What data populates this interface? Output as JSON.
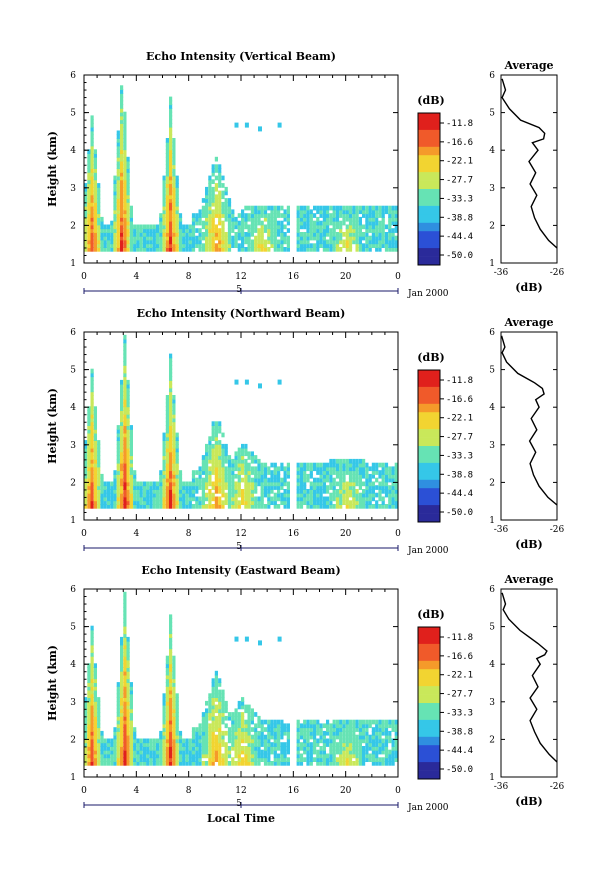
{
  "chart_data": [
    {
      "type": "heatmap",
      "title": "Echo Intensity (Vertical Beam)",
      "xlabel": "",
      "ylabel": "Height (km)",
      "xlim": [
        0,
        24
      ],
      "ylim": [
        1,
        6
      ],
      "x_ticks": [
        "0",
        "4",
        "8",
        "12",
        "16",
        "20",
        "0"
      ],
      "y_ticks": [
        "1",
        "2",
        "3",
        "4",
        "5",
        "6"
      ],
      "date_axis": {
        "ticks": [
          "5"
        ],
        "end_label": "Jan 2000"
      },
      "colorbar": {
        "unit": "(dB)",
        "ticks": [
          "-11.8",
          "-16.6",
          "-22.1",
          "-27.7",
          "-33.3",
          "-38.8",
          "-44.4",
          "-50.0"
        ]
      },
      "features": [
        {
          "hour": 0.5,
          "top_km": 4.8,
          "peak_db": -14
        },
        {
          "hour": 2.8,
          "top_km": 5.9,
          "peak_db": -12
        },
        {
          "hour": 6.5,
          "top_km": 5.3,
          "peak_db": -13
        },
        {
          "hour": 10.0,
          "top_km": 3.8,
          "peak_db": -20
        },
        {
          "hour": 13.5,
          "top_km": 2.5,
          "peak_db": -24
        },
        {
          "hour": 20.0,
          "top_km": 2.5,
          "peak_db": -26
        }
      ]
    },
    {
      "type": "line",
      "title": "Average",
      "xlabel": "(dB)",
      "ylabel": "",
      "xlim": [
        -36,
        -26
      ],
      "ylim": [
        1,
        6
      ],
      "x_ticks": [
        "-36",
        "-26"
      ],
      "y_ticks": [
        "1",
        "2",
        "3",
        "4",
        "5",
        "6"
      ],
      "series": [
        {
          "x": [
            -25.8,
            -27.5,
            -29,
            -30,
            -30.6,
            -29.6,
            -30.8,
            -29.8,
            -31,
            -29.4,
            -30.4,
            -28.4,
            -28.2,
            -29.2,
            -32.5,
            -34.5,
            -35.8,
            -35.2,
            -35.8
          ],
          "y": [
            1.4,
            1.6,
            1.9,
            2.2,
            2.5,
            2.8,
            3.1,
            3.4,
            3.7,
            4.0,
            4.2,
            4.3,
            4.45,
            4.6,
            4.8,
            5.1,
            5.4,
            5.6,
            5.9
          ]
        }
      ]
    },
    {
      "type": "heatmap",
      "title": "Echo Intensity (Northward Beam)",
      "xlabel": "",
      "ylabel": "Height (km)",
      "xlim": [
        0,
        24
      ],
      "ylim": [
        1,
        6
      ],
      "x_ticks": [
        "0",
        "4",
        "8",
        "12",
        "16",
        "20",
        "0"
      ],
      "y_ticks": [
        "1",
        "2",
        "3",
        "4",
        "5",
        "6"
      ],
      "date_axis": {
        "ticks": [
          "5"
        ],
        "end_label": "Jan 2000"
      },
      "colorbar": {
        "unit": "(dB)",
        "ticks": [
          "-11.8",
          "-16.6",
          "-22.1",
          "-27.7",
          "-33.3",
          "-38.8",
          "-44.4",
          "-50.0"
        ]
      },
      "features": [
        {
          "hour": 0.5,
          "top_km": 4.9,
          "peak_db": -14
        },
        {
          "hour": 3.0,
          "top_km": 5.8,
          "peak_db": -12
        },
        {
          "hour": 6.5,
          "top_km": 5.3,
          "peak_db": -13
        },
        {
          "hour": 10.0,
          "top_km": 3.8,
          "peak_db": -20
        },
        {
          "hour": 12.0,
          "top_km": 3.0,
          "peak_db": -23
        },
        {
          "hour": 20.0,
          "top_km": 2.6,
          "peak_db": -26
        }
      ]
    },
    {
      "type": "line",
      "title": "Average",
      "xlabel": "(dB)",
      "ylabel": "",
      "xlim": [
        -36,
        -26
      ],
      "ylim": [
        1,
        6
      ],
      "x_ticks": [
        "-36",
        "-26"
      ],
      "y_ticks": [
        "1",
        "2",
        "3",
        "4",
        "5",
        "6"
      ],
      "series": [
        {
          "x": [
            -25.8,
            -27.6,
            -29.2,
            -30.2,
            -30.8,
            -29.8,
            -30.9,
            -29.6,
            -30.6,
            -29.2,
            -29.8,
            -28.3,
            -28.6,
            -30,
            -33,
            -35,
            -35.8,
            -35.3,
            -35.9
          ],
          "y": [
            1.4,
            1.6,
            1.9,
            2.2,
            2.5,
            2.8,
            3.1,
            3.4,
            3.7,
            4.0,
            4.2,
            4.35,
            4.5,
            4.65,
            4.9,
            5.2,
            5.45,
            5.6,
            5.9
          ]
        }
      ]
    },
    {
      "type": "heatmap",
      "title": "Echo Intensity (Eastward Beam)",
      "xlabel": "Local Time",
      "ylabel": "Height (km)",
      "xlim": [
        0,
        24
      ],
      "ylim": [
        1,
        6
      ],
      "x_ticks": [
        "0",
        "4",
        "8",
        "12",
        "16",
        "20",
        "0"
      ],
      "y_ticks": [
        "1",
        "2",
        "3",
        "4",
        "5",
        "6"
      ],
      "date_axis": {
        "ticks": [
          "5"
        ],
        "end_label": "Jan 2000"
      },
      "colorbar": {
        "unit": "(dB)",
        "ticks": [
          "-11.8",
          "-16.6",
          "-22.1",
          "-27.7",
          "-33.3",
          "-38.8",
          "-44.4",
          "-50.0"
        ]
      },
      "features": [
        {
          "hour": 0.5,
          "top_km": 4.9,
          "peak_db": -14
        },
        {
          "hour": 3.0,
          "top_km": 5.8,
          "peak_db": -12
        },
        {
          "hour": 6.5,
          "top_km": 5.2,
          "peak_db": -13
        },
        {
          "hour": 10.0,
          "top_km": 3.8,
          "peak_db": -20
        },
        {
          "hour": 12.0,
          "top_km": 3.1,
          "peak_db": -23
        },
        {
          "hour": 20.0,
          "top_km": 2.5,
          "peak_db": -26
        }
      ]
    },
    {
      "type": "line",
      "title": "Average",
      "xlabel": "(dB)",
      "ylabel": "",
      "xlim": [
        -36,
        -26
      ],
      "ylim": [
        1,
        6
      ],
      "x_ticks": [
        "-36",
        "-26"
      ],
      "y_ticks": [
        "1",
        "2",
        "3",
        "4",
        "5",
        "6"
      ],
      "series": [
        {
          "x": [
            -25.6,
            -27.4,
            -29,
            -30,
            -30.8,
            -29.6,
            -30.8,
            -29.4,
            -30.4,
            -29,
            -29.6,
            -28.2,
            -27.8,
            -29.4,
            -32.6,
            -34.6,
            -35.6,
            -35.2,
            -35.8
          ],
          "y": [
            1.4,
            1.6,
            1.9,
            2.2,
            2.5,
            2.8,
            3.1,
            3.4,
            3.7,
            4.0,
            4.15,
            4.25,
            4.35,
            4.55,
            4.9,
            5.2,
            5.45,
            5.6,
            5.9
          ]
        }
      ]
    }
  ]
}
